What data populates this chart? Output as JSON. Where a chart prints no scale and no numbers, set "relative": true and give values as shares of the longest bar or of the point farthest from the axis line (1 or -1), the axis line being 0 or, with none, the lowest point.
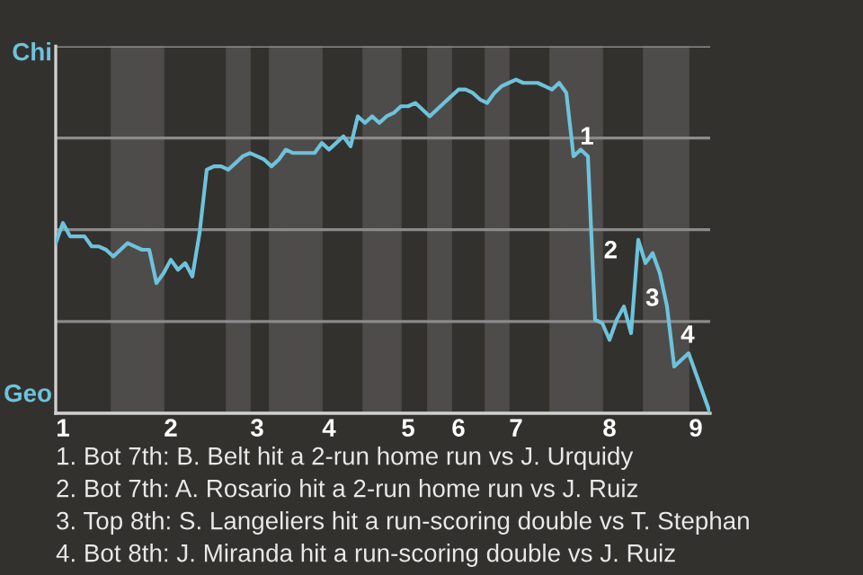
{
  "chart_data": {
    "type": "line",
    "relative": true,
    "grid": "y",
    "categories": [
      null,
      "1",
      null,
      null,
      null,
      null,
      null,
      null,
      null,
      null,
      null,
      null,
      null,
      null,
      null,
      null,
      "2",
      null,
      null,
      null,
      null,
      null,
      null,
      null,
      null,
      null,
      null,
      null,
      "3",
      null,
      null,
      null,
      null,
      null,
      null,
      null,
      null,
      null,
      "4",
      null,
      null,
      null,
      null,
      null,
      null,
      null,
      null,
      null,
      null,
      "5",
      null,
      null,
      null,
      null,
      null,
      null,
      "6",
      null,
      null,
      null,
      null,
      null,
      null,
      null,
      "7",
      null,
      null,
      null,
      null,
      null,
      null,
      null,
      null,
      null,
      null,
      null,
      null,
      "8",
      null,
      null,
      null,
      null,
      null,
      null,
      null,
      null,
      null,
      null,
      null,
      "9",
      null,
      null
    ],
    "series": [
      {
        "color": "#6ec3dc",
        "values": [
          0.51,
          0.57,
          0.53,
          0.53,
          0.53,
          0.5,
          0.5,
          0.49,
          0.47,
          0.49,
          0.51,
          0.5,
          0.49,
          0.49,
          0.39,
          0.42,
          0.46,
          0.43,
          0.45,
          0.41,
          0.54,
          0.73,
          0.74,
          0.74,
          0.73,
          0.75,
          0.77,
          0.78,
          0.77,
          0.76,
          0.74,
          0.76,
          0.79,
          0.78,
          0.78,
          0.78,
          0.78,
          0.81,
          0.79,
          0.81,
          0.83,
          0.8,
          0.89,
          0.87,
          0.89,
          0.87,
          0.89,
          0.9,
          0.92,
          0.92,
          0.93,
          0.91,
          0.89,
          0.91,
          0.93,
          0.95,
          0.97,
          0.97,
          0.96,
          0.94,
          0.93,
          0.96,
          0.98,
          0.99,
          1,
          0.99,
          0.99,
          0.99,
          0.98,
          0.97,
          0.99,
          0.96,
          0.77,
          0.79,
          0.77,
          0.28,
          0.27,
          0.22,
          0.28,
          0.32,
          0.24,
          0.52,
          0.45,
          0.48,
          0.42,
          0.32,
          0.14,
          0.16,
          0.18,
          0.12,
          0.06,
          0
        ]
      }
    ],
    "annotations": [
      "Chi",
      "Geo",
      "1",
      "2",
      "3",
      "4",
      "1. Bot 7th: B. Belt hit a 2-run home run vs J. Urquidy",
      "2. Bot 7th: A. Rosario hit a 2-run home run vs J. Ruiz",
      "3. Top 8th: S. Langeliers hit a run-scoring double vs T. Stephan",
      "4. Bot 8th: J. Miranda hit a run-scoring double vs J. Ruiz"
    ]
  }
}
